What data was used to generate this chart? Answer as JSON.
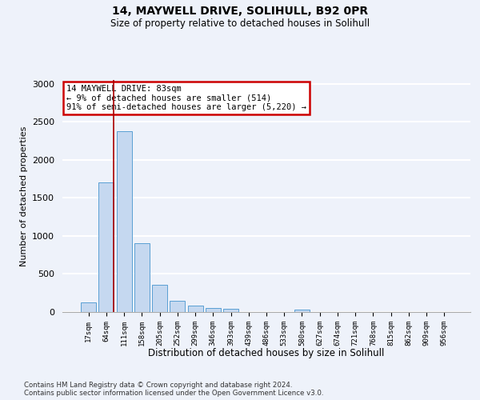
{
  "title1": "14, MAYWELL DRIVE, SOLIHULL, B92 0PR",
  "title2": "Size of property relative to detached houses in Solihull",
  "xlabel": "Distribution of detached houses by size in Solihull",
  "ylabel": "Number of detached properties",
  "categories": [
    "17sqm",
    "64sqm",
    "111sqm",
    "158sqm",
    "205sqm",
    "252sqm",
    "299sqm",
    "346sqm",
    "393sqm",
    "439sqm",
    "486sqm",
    "533sqm",
    "580sqm",
    "627sqm",
    "674sqm",
    "721sqm",
    "768sqm",
    "815sqm",
    "862sqm",
    "909sqm",
    "956sqm"
  ],
  "values": [
    130,
    1700,
    2380,
    900,
    355,
    150,
    85,
    50,
    40,
    0,
    0,
    0,
    30,
    0,
    0,
    0,
    0,
    0,
    0,
    0,
    0
  ],
  "bar_color": "#c5d8f0",
  "bar_edge_color": "#5a9fd4",
  "vline_x_idx": 1,
  "vline_color": "#aa0000",
  "annotation_text": "14 MAYWELL DRIVE: 83sqm\n← 9% of detached houses are smaller (514)\n91% of semi-detached houses are larger (5,220) →",
  "annotation_box_color": "#ffffff",
  "annotation_box_edge": "#cc0000",
  "ylim": [
    0,
    3050
  ],
  "yticks": [
    0,
    500,
    1000,
    1500,
    2000,
    2500,
    3000
  ],
  "background_color": "#eef2fa",
  "grid_color": "#ffffff",
  "footer1": "Contains HM Land Registry data © Crown copyright and database right 2024.",
  "footer2": "Contains public sector information licensed under the Open Government Licence v3.0."
}
